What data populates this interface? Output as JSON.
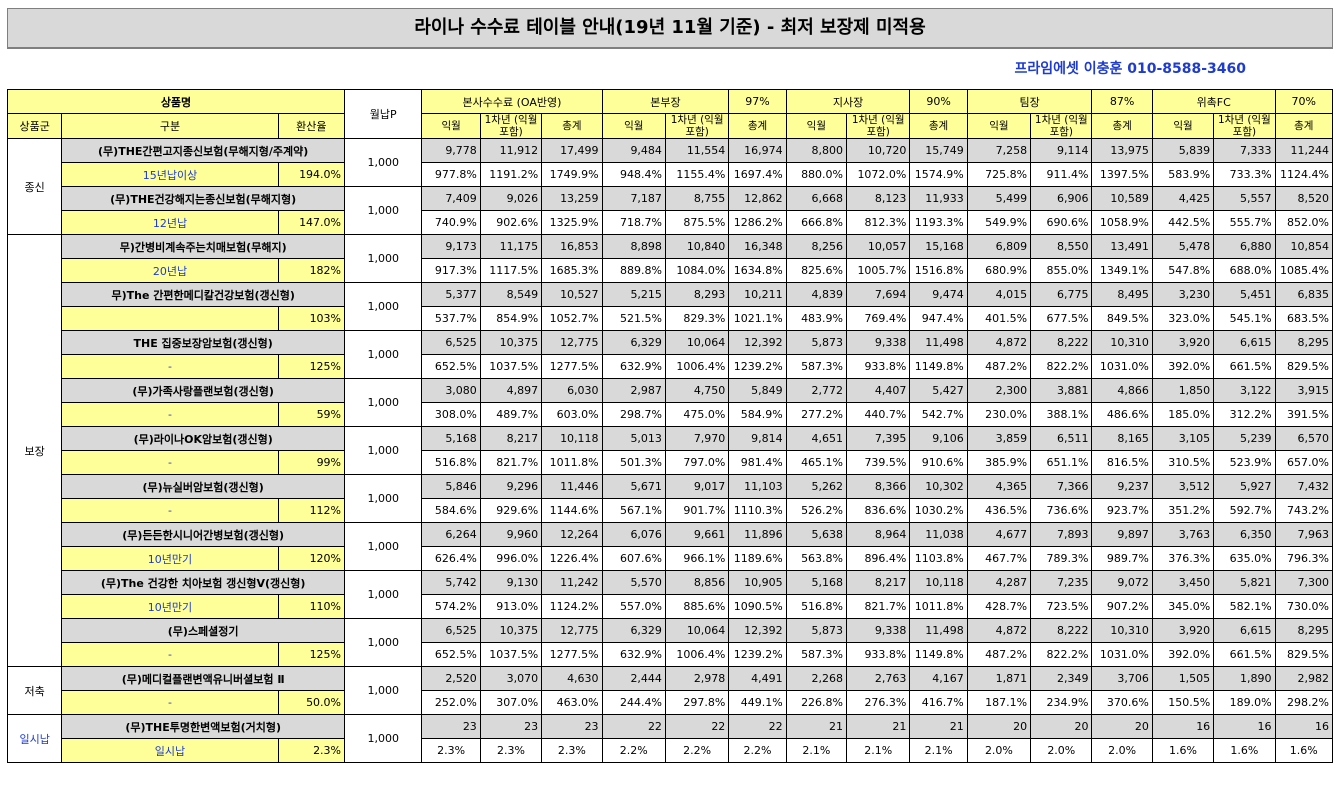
{
  "title": "라이나 수수료 테이블 안내(19년 11월 기준) - 최저 보장제 미적용",
  "contact": "프라임에셋 이충훈 010-8588-3460",
  "header": {
    "product_name": "상품명",
    "monthly_p": "월납P",
    "col_group": "상품군",
    "col_type": "구분",
    "col_rate": "환산율",
    "sections": [
      {
        "label": "본사수수료 (OA반영)",
        "pct": ""
      },
      {
        "label": "본부장",
        "pct": "97%"
      },
      {
        "label": "지사장",
        "pct": "90%"
      },
      {
        "label": "팀장",
        "pct": "87%"
      },
      {
        "label": "위촉FC",
        "pct": "70%"
      }
    ],
    "sub": {
      "a": "익월",
      "b": "1차년\n(익월포함)",
      "c": "총계"
    }
  },
  "groups": [
    {
      "name": "종신",
      "rows": 2
    },
    {
      "name": "보장",
      "rows": 9
    },
    {
      "name": "저축",
      "rows": 1
    },
    {
      "name": "일시납",
      "rows": 1
    }
  ],
  "products": [
    {
      "name": "(무)THE간편고지종신보험(무해지형/주계약)",
      "sub": "15년납이상",
      "rate": "194.0%",
      "monthly": "1,000",
      "amounts": [
        "9,778",
        "11,912",
        "17,499",
        "9,484",
        "11,554",
        "16,974",
        "8,800",
        "10,720",
        "15,749",
        "7,258",
        "9,114",
        "13,975",
        "5,839",
        "7,333",
        "11,244"
      ],
      "pcts": [
        "977.8%",
        "1191.2%",
        "1749.9%",
        "948.4%",
        "1155.4%",
        "1697.4%",
        "880.0%",
        "1072.0%",
        "1574.9%",
        "725.8%",
        "911.4%",
        "1397.5%",
        "583.9%",
        "733.3%",
        "1124.4%"
      ]
    },
    {
      "name": "(무)THE건강해지는종신보험(무해지형)",
      "sub": "12년납",
      "rate": "147.0%",
      "monthly": "1,000",
      "amounts": [
        "7,409",
        "9,026",
        "13,259",
        "7,187",
        "8,755",
        "12,862",
        "6,668",
        "8,123",
        "11,933",
        "5,499",
        "6,906",
        "10,589",
        "4,425",
        "5,557",
        "8,520"
      ],
      "pcts": [
        "740.9%",
        "902.6%",
        "1325.9%",
        "718.7%",
        "875.5%",
        "1286.2%",
        "666.8%",
        "812.3%",
        "1193.3%",
        "549.9%",
        "690.6%",
        "1058.9%",
        "442.5%",
        "555.7%",
        "852.0%"
      ]
    },
    {
      "name": "무)간병비계속주는치매보험(무해지)",
      "sub": "20년납",
      "rate": "182%",
      "monthly": "1,000",
      "amounts": [
        "9,173",
        "11,175",
        "16,853",
        "8,898",
        "10,840",
        "16,348",
        "8,256",
        "10,057",
        "15,168",
        "6,809",
        "8,550",
        "13,491",
        "5,478",
        "6,880",
        "10,854"
      ],
      "pcts": [
        "917.3%",
        "1117.5%",
        "1685.3%",
        "889.8%",
        "1084.0%",
        "1634.8%",
        "825.6%",
        "1005.7%",
        "1516.8%",
        "680.9%",
        "855.0%",
        "1349.1%",
        "547.8%",
        "688.0%",
        "1085.4%"
      ]
    },
    {
      "name": "무)The 간편한메디칼건강보험(갱신형)",
      "sub": "",
      "rate": "103%",
      "monthly": "1,000",
      "amounts": [
        "5,377",
        "8,549",
        "10,527",
        "5,215",
        "8,293",
        "10,211",
        "4,839",
        "7,694",
        "9,474",
        "4,015",
        "6,775",
        "8,495",
        "3,230",
        "5,451",
        "6,835"
      ],
      "pcts": [
        "537.7%",
        "854.9%",
        "1052.7%",
        "521.5%",
        "829.3%",
        "1021.1%",
        "483.9%",
        "769.4%",
        "947.4%",
        "401.5%",
        "677.5%",
        "849.5%",
        "323.0%",
        "545.1%",
        "683.5%"
      ]
    },
    {
      "name": "THE 집중보장암보험(갱신형)",
      "sub": "-",
      "rate": "125%",
      "monthly": "1,000",
      "amounts": [
        "6,525",
        "10,375",
        "12,775",
        "6,329",
        "10,064",
        "12,392",
        "5,873",
        "9,338",
        "11,498",
        "4,872",
        "8,222",
        "10,310",
        "3,920",
        "6,615",
        "8,295"
      ],
      "pcts": [
        "652.5%",
        "1037.5%",
        "1277.5%",
        "632.9%",
        "1006.4%",
        "1239.2%",
        "587.3%",
        "933.8%",
        "1149.8%",
        "487.2%",
        "822.2%",
        "1031.0%",
        "392.0%",
        "661.5%",
        "829.5%"
      ]
    },
    {
      "name": "(무)가족사랑플랜보험(갱신형)",
      "sub": "-",
      "rate": "59%",
      "monthly": "1,000",
      "amounts": [
        "3,080",
        "4,897",
        "6,030",
        "2,987",
        "4,750",
        "5,849",
        "2,772",
        "4,407",
        "5,427",
        "2,300",
        "3,881",
        "4,866",
        "1,850",
        "3,122",
        "3,915"
      ],
      "pcts": [
        "308.0%",
        "489.7%",
        "603.0%",
        "298.7%",
        "475.0%",
        "584.9%",
        "277.2%",
        "440.7%",
        "542.7%",
        "230.0%",
        "388.1%",
        "486.6%",
        "185.0%",
        "312.2%",
        "391.5%"
      ]
    },
    {
      "name": "(무)라이나OK암보험(갱신형)",
      "sub": "-",
      "rate": "99%",
      "monthly": "1,000",
      "amounts": [
        "5,168",
        "8,217",
        "10,118",
        "5,013",
        "7,970",
        "9,814",
        "4,651",
        "7,395",
        "9,106",
        "3,859",
        "6,511",
        "8,165",
        "3,105",
        "5,239",
        "6,570"
      ],
      "pcts": [
        "516.8%",
        "821.7%",
        "1011.8%",
        "501.3%",
        "797.0%",
        "981.4%",
        "465.1%",
        "739.5%",
        "910.6%",
        "385.9%",
        "651.1%",
        "816.5%",
        "310.5%",
        "523.9%",
        "657.0%"
      ]
    },
    {
      "name": "(무)뉴실버암보험(갱신형)",
      "sub": "-",
      "rate": "112%",
      "monthly": "1,000",
      "amounts": [
        "5,846",
        "9,296",
        "11,446",
        "5,671",
        "9,017",
        "11,103",
        "5,262",
        "8,366",
        "10,302",
        "4,365",
        "7,366",
        "9,237",
        "3,512",
        "5,927",
        "7,432"
      ],
      "pcts": [
        "584.6%",
        "929.6%",
        "1144.6%",
        "567.1%",
        "901.7%",
        "1110.3%",
        "526.2%",
        "836.6%",
        "1030.2%",
        "436.5%",
        "736.6%",
        "923.7%",
        "351.2%",
        "592.7%",
        "743.2%"
      ]
    },
    {
      "name": "(무)든든한시니어간병보험(갱신형)",
      "sub": "10년만기",
      "rate": "120%",
      "monthly": "1,000",
      "amounts": [
        "6,264",
        "9,960",
        "12,264",
        "6,076",
        "9,661",
        "11,896",
        "5,638",
        "8,964",
        "11,038",
        "4,677",
        "7,893",
        "9,897",
        "3,763",
        "6,350",
        "7,963"
      ],
      "pcts": [
        "626.4%",
        "996.0%",
        "1226.4%",
        "607.6%",
        "966.1%",
        "1189.6%",
        "563.8%",
        "896.4%",
        "1103.8%",
        "467.7%",
        "789.3%",
        "989.7%",
        "376.3%",
        "635.0%",
        "796.3%"
      ]
    },
    {
      "name": "(무)The 건강한 치아보험 갱신형V(갱신형)",
      "sub": "10년만기",
      "rate": "110%",
      "monthly": "1,000",
      "amounts": [
        "5,742",
        "9,130",
        "11,242",
        "5,570",
        "8,856",
        "10,905",
        "5,168",
        "8,217",
        "10,118",
        "4,287",
        "7,235",
        "9,072",
        "3,450",
        "5,821",
        "7,300"
      ],
      "pcts": [
        "574.2%",
        "913.0%",
        "1124.2%",
        "557.0%",
        "885.6%",
        "1090.5%",
        "516.8%",
        "821.7%",
        "1011.8%",
        "428.7%",
        "723.5%",
        "907.2%",
        "345.0%",
        "582.1%",
        "730.0%"
      ]
    },
    {
      "name": "(무)스페셜정기",
      "sub": "-",
      "rate": "125%",
      "monthly": "1,000",
      "amounts": [
        "6,525",
        "10,375",
        "12,775",
        "6,329",
        "10,064",
        "12,392",
        "5,873",
        "9,338",
        "11,498",
        "4,872",
        "8,222",
        "10,310",
        "3,920",
        "6,615",
        "8,295"
      ],
      "pcts": [
        "652.5%",
        "1037.5%",
        "1277.5%",
        "632.9%",
        "1006.4%",
        "1239.2%",
        "587.3%",
        "933.8%",
        "1149.8%",
        "487.2%",
        "822.2%",
        "1031.0%",
        "392.0%",
        "661.5%",
        "829.5%"
      ]
    },
    {
      "name": "(무)메디컬플랜변액유니버셜보험 Ⅱ",
      "sub": "-",
      "rate": "50.0%",
      "monthly": "1,000",
      "amounts": [
        "2,520",
        "3,070",
        "4,630",
        "2,444",
        "2,978",
        "4,491",
        "2,268",
        "2,763",
        "4,167",
        "1,871",
        "2,349",
        "3,706",
        "1,505",
        "1,890",
        "2,982"
      ],
      "pcts": [
        "252.0%",
        "307.0%",
        "463.0%",
        "244.4%",
        "297.8%",
        "449.1%",
        "226.8%",
        "276.3%",
        "416.7%",
        "187.1%",
        "234.9%",
        "370.6%",
        "150.5%",
        "189.0%",
        "298.2%"
      ]
    },
    {
      "name": "(무)THE투명한변액보험(거치형)",
      "sub": "일시납",
      "rate": "2.3%",
      "monthly": "1,000",
      "amounts": [
        "23",
        "23",
        "23",
        "22",
        "22",
        "22",
        "21",
        "21",
        "21",
        "20",
        "20",
        "20",
        "16",
        "16",
        "16"
      ],
      "pcts": [
        "2.3%",
        "2.3%",
        "2.3%",
        "2.2%",
        "2.2%",
        "2.2%",
        "2.1%",
        "2.1%",
        "2.1%",
        "2.0%",
        "2.0%",
        "2.0%",
        "1.6%",
        "1.6%",
        "1.6%"
      ]
    }
  ]
}
